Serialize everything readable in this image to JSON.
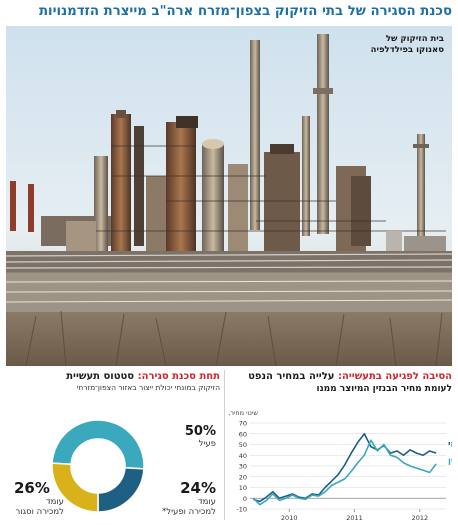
{
  "headline": "סכנת הסגירה של בתי הזיקוק בצפון־מזרח ארה\"ב מייצרת הזדמנויות",
  "photo": {
    "caption_line1": "בית הזיקוק של",
    "caption_line2": "סאנוקו בפילדלפיה"
  },
  "left_panel": {
    "title_red": "תחת סכנת סגירה:",
    "title_black": " סטטוס תעשיית",
    "subtitle": "הזיקוק במונחי יכולת ייצור באזור הצפון־מזרחי",
    "segments": [
      {
        "percent": "50%",
        "label": "פעיל",
        "color": "#3aa8bd",
        "value": 50
      },
      {
        "percent": "24%",
        "label": "עומד\nלמכירה ופעיל*",
        "color": "#1f5f83",
        "value": 24
      },
      {
        "percent": "26%",
        "label": "עומד\nלמכירה וסגור",
        "color": "#d9b11a",
        "value": 26
      }
    ]
  },
  "right_panel": {
    "title_red": "הסיבה לפגיעה בתעשייה:",
    "title_black": " עלייה במחיר הנפט",
    "subtitle": "לעומת מחיר הבנזין המיוצר ממנו"
  },
  "chart_data": {
    "type": "line",
    "unit_label": "שינוי מחיר, באחוזים",
    "ylim": [
      -10,
      70
    ],
    "yticks": [
      -10,
      0,
      10,
      20,
      30,
      40,
      50,
      60,
      70
    ],
    "xticks": [
      {
        "label": "2010",
        "x": 2010.0
      },
      {
        "label": "2011",
        "x": 2011.0
      },
      {
        "label": "2012",
        "x": 2012.0
      }
    ],
    "xlim": [
      2009.4,
      2012.4
    ],
    "series": [
      {
        "name": "נפט גולמי",
        "color": "#1f5f83",
        "x": [
          2009.45,
          2009.55,
          2009.65,
          2009.75,
          2009.85,
          2009.95,
          2010.05,
          2010.15,
          2010.25,
          2010.35,
          2010.45,
          2010.55,
          2010.65,
          2010.75,
          2010.85,
          2010.95,
          2011.05,
          2011.15,
          2011.25,
          2011.35,
          2011.45,
          2011.55,
          2011.65,
          2011.75,
          2011.85,
          2011.95,
          2012.05,
          2012.15,
          2012.25
        ],
        "y": [
          -1,
          -3,
          1,
          6,
          0,
          2,
          4,
          1,
          0,
          4,
          3,
          10,
          16,
          22,
          31,
          42,
          52,
          60,
          48,
          45,
          49,
          42,
          44,
          40,
          45,
          42,
          40,
          44,
          42
        ]
      },
      {
        "name": "בנזין",
        "color": "#3aa8bd",
        "x": [
          2009.45,
          2009.55,
          2009.65,
          2009.75,
          2009.85,
          2009.95,
          2010.05,
          2010.15,
          2010.25,
          2010.35,
          2010.45,
          2010.55,
          2010.65,
          2010.75,
          2010.85,
          2010.95,
          2011.05,
          2011.15,
          2011.25,
          2011.35,
          2011.45,
          2011.55,
          2011.65,
          2011.75,
          2011.85,
          2011.95,
          2012.05,
          2012.15,
          2012.25
        ],
        "y": [
          0,
          -6,
          -2,
          4,
          -2,
          0,
          3,
          0,
          -1,
          3,
          2,
          6,
          12,
          15,
          18,
          25,
          33,
          40,
          54,
          44,
          50,
          40,
          38,
          33,
          30,
          28,
          26,
          24,
          32
        ]
      }
    ]
  }
}
